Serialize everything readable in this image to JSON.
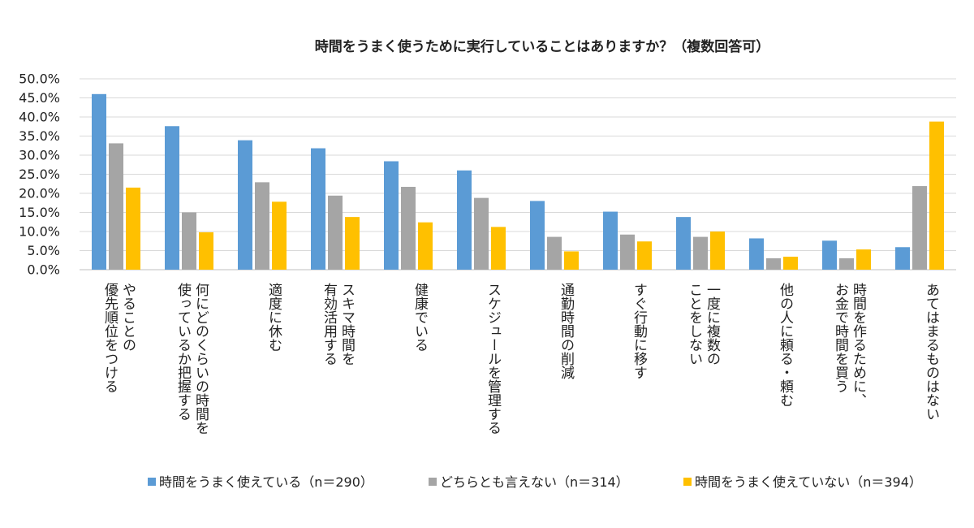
{
  "chart_data": {
    "type": "bar",
    "title": "時間をうまく使うために実行していることはありますか？（複数回答可）",
    "ylim": [
      0,
      50
    ],
    "yticks": [
      "0.0%",
      "5.0%",
      "10.0%",
      "15.0%",
      "20.0%",
      "25.0%",
      "30.0%",
      "35.0%",
      "40.0%",
      "45.0%",
      "50.0%"
    ],
    "grid": true,
    "legend_position": "bottom",
    "categories": [
      [
        "やることの",
        "優先順位をつける"
      ],
      [
        "何にどのくらいの時間を",
        "使っているか把握する"
      ],
      [
        "適度に休む"
      ],
      [
        "スキマ時間を",
        "有効活用する"
      ],
      [
        "健康でいる"
      ],
      [
        "スケジュールを管理する"
      ],
      [
        "通勤時間の削減"
      ],
      [
        "すぐ行動に移す"
      ],
      [
        "一度に複数の",
        "ことをしない"
      ],
      [
        "他の人に頼る・頼む"
      ],
      [
        "時間を作るために、",
        "お金で時間を買う"
      ],
      [
        "あてはまるものはない"
      ]
    ],
    "series": [
      {
        "name": "時間をうまく使えている（n＝290）",
        "color": "#5b9bd5",
        "values": [
          46.0,
          37.6,
          33.9,
          31.8,
          28.4,
          26.0,
          18.0,
          15.2,
          13.8,
          8.2,
          7.6,
          5.9
        ]
      },
      {
        "name": "どちらとも言えない（n＝314）",
        "color": "#a5a5a5",
        "values": [
          33.1,
          15.0,
          22.9,
          19.4,
          21.7,
          18.8,
          8.6,
          9.2,
          8.6,
          3.0,
          3.0,
          21.9
        ]
      },
      {
        "name": "時間をうまく使えていない（n＝394）",
        "color": "#ffc000",
        "values": [
          21.5,
          9.8,
          17.8,
          13.8,
          12.4,
          11.2,
          4.8,
          7.4,
          10.0,
          3.4,
          5.3,
          38.8
        ]
      }
    ]
  }
}
